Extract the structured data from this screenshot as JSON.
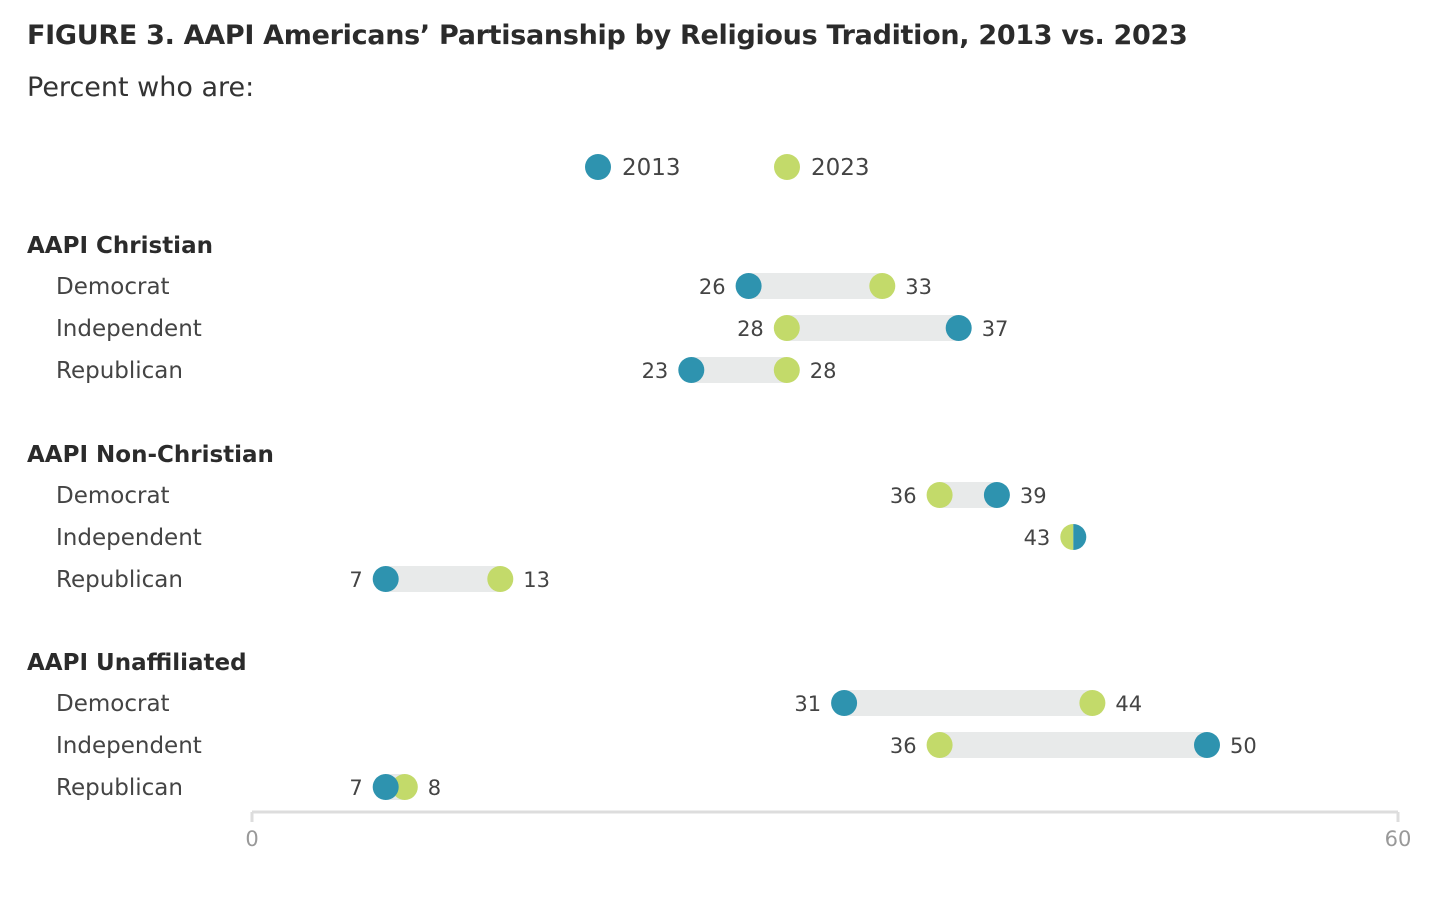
{
  "chart_data": {
    "type": "dumbbell",
    "title": "FIGURE 3. AAPI Americans’ Partisanship by Religious Tradition, 2013 vs. 2023",
    "subtitle": "Percent who are:",
    "xlim": [
      0,
      60
    ],
    "xticks": [
      "0",
      "60"
    ],
    "grid": false,
    "legend_placement": "top-center",
    "series": [
      {
        "name": "2013",
        "color": "#2E93AF"
      },
      {
        "name": "2023",
        "color": "#C3DA6A"
      }
    ],
    "groups": [
      {
        "name": "AAPI Christian",
        "rows": [
          {
            "label": "Democrat",
            "y2013": 26,
            "y2023": 33
          },
          {
            "label": "Independent",
            "y2013": 37,
            "y2023": 28
          },
          {
            "label": "Republican",
            "y2013": 23,
            "y2023": 28
          }
        ]
      },
      {
        "name": "AAPI Non-Christian",
        "rows": [
          {
            "label": "Democrat",
            "y2013": 39,
            "y2023": 36
          },
          {
            "label": "Independent",
            "y2013": 43,
            "y2023": 43
          },
          {
            "label": "Republican",
            "y2013": 7,
            "y2023": 13
          }
        ]
      },
      {
        "name": "AAPI Unaffiliated",
        "rows": [
          {
            "label": "Democrat",
            "y2013": 31,
            "y2023": 44
          },
          {
            "label": "Independent",
            "y2013": 50,
            "y2023": 36
          },
          {
            "label": "Republican",
            "y2013": 7,
            "y2023": 8
          }
        ]
      }
    ]
  }
}
